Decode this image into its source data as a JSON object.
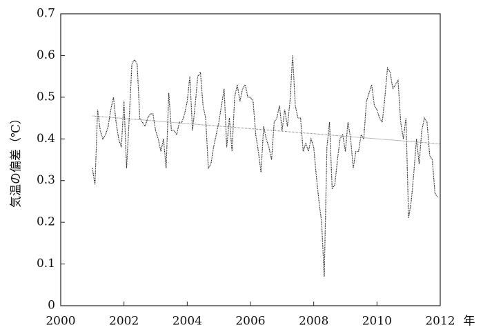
{
  "chart_data": {
    "type": "line",
    "xlabel": "年",
    "ylabel": "気温の偏差（℃）",
    "xlim": [
      2000,
      2012
    ],
    "xticks": [
      2000,
      2002,
      2004,
      2006,
      2008,
      2010,
      2012
    ],
    "ylim": [
      0,
      0.7
    ],
    "yticks": [
      0,
      0.1,
      0.2,
      0.3,
      0.4,
      0.5,
      0.6,
      0.7
    ],
    "series": [
      {
        "color": "#333333",
        "x": [
          2001,
          2001.083,
          2001.167,
          2001.25,
          2001.333,
          2001.417,
          2001.5,
          2001.583,
          2001.667,
          2001.75,
          2001.833,
          2001.917,
          2002,
          2002.083,
          2002.167,
          2002.25,
          2002.333,
          2002.417,
          2002.5,
          2002.583,
          2002.667,
          2002.75,
          2002.833,
          2002.917,
          2003,
          2003.083,
          2003.167,
          2003.25,
          2003.333,
          2003.417,
          2003.5,
          2003.583,
          2003.667,
          2003.75,
          2003.833,
          2003.917,
          2004,
          2004.083,
          2004.167,
          2004.25,
          2004.333,
          2004.417,
          2004.5,
          2004.583,
          2004.667,
          2004.75,
          2004.833,
          2004.917,
          2005,
          2005.083,
          2005.167,
          2005.25,
          2005.333,
          2005.417,
          2005.5,
          2005.583,
          2005.667,
          2005.75,
          2005.833,
          2005.917,
          2006,
          2006.083,
          2006.167,
          2006.25,
          2006.333,
          2006.417,
          2006.5,
          2006.583,
          2006.667,
          2006.75,
          2006.833,
          2006.917,
          2007,
          2007.083,
          2007.167,
          2007.25,
          2007.333,
          2007.417,
          2007.5,
          2007.583,
          2007.667,
          2007.75,
          2007.833,
          2007.917,
          2008,
          2008.083,
          2008.167,
          2008.25,
          2008.333,
          2008.417,
          2008.5,
          2008.583,
          2008.667,
          2008.75,
          2008.833,
          2008.917,
          2009,
          2009.083,
          2009.167,
          2009.25,
          2009.333,
          2009.417,
          2009.5,
          2009.583,
          2009.667,
          2009.75,
          2009.833,
          2009.917,
          2010,
          2010.083,
          2010.167,
          2010.25,
          2010.333,
          2010.417,
          2010.5,
          2010.583,
          2010.667,
          2010.75,
          2010.833,
          2010.917,
          2011,
          2011.083,
          2011.167,
          2011.25,
          2011.333,
          2011.417,
          2011.5,
          2011.583,
          2011.667,
          2011.75,
          2011.833,
          2011.917
        ],
        "values": [
          0.33,
          0.29,
          0.47,
          0.42,
          0.4,
          0.41,
          0.43,
          0.47,
          0.5,
          0.44,
          0.4,
          0.38,
          0.49,
          0.33,
          0.45,
          0.58,
          0.59,
          0.58,
          0.45,
          0.44,
          0.43,
          0.45,
          0.46,
          0.46,
          0.42,
          0.4,
          0.37,
          0.4,
          0.33,
          0.51,
          0.42,
          0.42,
          0.41,
          0.44,
          0.44,
          0.46,
          0.49,
          0.55,
          0.42,
          0.48,
          0.55,
          0.56,
          0.48,
          0.45,
          0.33,
          0.34,
          0.38,
          0.41,
          0.44,
          0.48,
          0.52,
          0.38,
          0.45,
          0.37,
          0.5,
          0.53,
          0.49,
          0.52,
          0.53,
          0.5,
          0.5,
          0.49,
          0.41,
          0.37,
          0.32,
          0.43,
          0.4,
          0.38,
          0.35,
          0.44,
          0.45,
          0.48,
          0.42,
          0.47,
          0.43,
          0.49,
          0.6,
          0.48,
          0.45,
          0.45,
          0.37,
          0.39,
          0.37,
          0.4,
          0.38,
          0.31,
          0.25,
          0.2,
          0.07,
          0.38,
          0.44,
          0.28,
          0.29,
          0.35,
          0.4,
          0.41,
          0.37,
          0.44,
          0.4,
          0.33,
          0.37,
          0.37,
          0.41,
          0.4,
          0.49,
          0.51,
          0.53,
          0.48,
          0.47,
          0.45,
          0.44,
          0.5,
          0.57,
          0.56,
          0.52,
          0.53,
          0.54,
          0.44,
          0.4,
          0.45,
          0.21,
          0.25,
          0.32,
          0.4,
          0.34,
          0.42,
          0.45,
          0.44,
          0.36,
          0.35,
          0.27,
          0.26
        ]
      },
      {
        "color": "#777777",
        "x": [
          2001,
          2012
        ],
        "values": [
          0.455,
          0.388
        ]
      }
    ]
  }
}
